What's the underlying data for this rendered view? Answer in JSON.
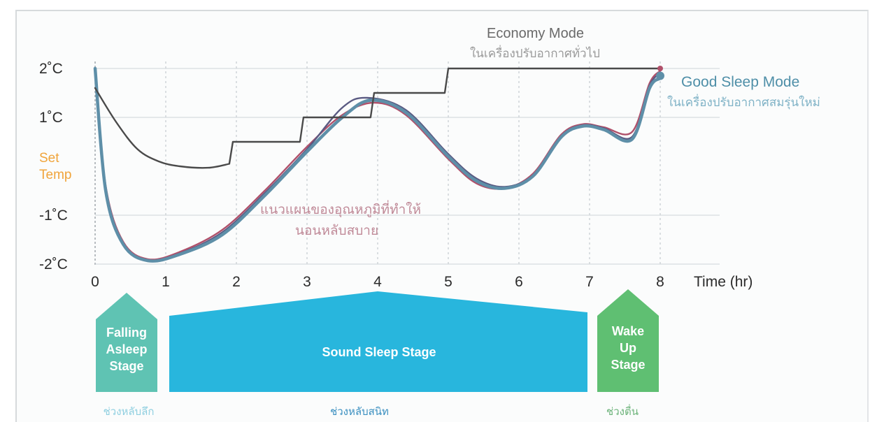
{
  "chart_data": {
    "type": "line",
    "xlabel": "Time (hr)",
    "x_ticks": [
      "0",
      "1",
      "2",
      "3",
      "4",
      "5",
      "6",
      "7",
      "8"
    ],
    "y_ticks": [
      "2˚C",
      "1˚C",
      "Set Temp",
      "-1˚C",
      "-2˚C"
    ],
    "set_temp_label": [
      "Set",
      "Temp"
    ],
    "xlim": [
      0,
      8.2
    ],
    "ylim": [
      -2,
      2
    ],
    "grid": true,
    "series": [
      {
        "name": "Economy Mode",
        "subtitle": "ในเครื่องปรับอากาศทั่วไป",
        "color": "#4a4a4a",
        "x": [
          0,
          0.3,
          0.6,
          0.9,
          1.2,
          1.6,
          1.9,
          1.95,
          2.9,
          2.95,
          3.9,
          3.95,
          4.95,
          5.0,
          8.0
        ],
        "y": [
          1.6,
          0.9,
          0.35,
          0.1,
          0.0,
          -0.03,
          0.05,
          0.5,
          0.5,
          1.0,
          1.0,
          1.5,
          1.5,
          2.0,
          2.0
        ]
      },
      {
        "name": "Good Sleep Mode",
        "subtitle": "ในเครื่องปรับอากาศสมรุ่นใหม่",
        "color": "#5e8fa8",
        "x": [
          0,
          0.15,
          0.4,
          0.75,
          1.2,
          1.8,
          2.4,
          3.0,
          3.5,
          3.9,
          4.4,
          5.0,
          5.4,
          5.8,
          6.2,
          6.6,
          6.9,
          7.2,
          7.6,
          7.85,
          8.0
        ],
        "y": [
          2.0,
          -0.5,
          -1.6,
          -1.93,
          -1.8,
          -1.4,
          -0.6,
          0.3,
          1.0,
          1.35,
          1.1,
          0.2,
          -0.3,
          -0.45,
          -0.2,
          0.6,
          0.82,
          0.75,
          0.55,
          1.6,
          1.8
        ]
      },
      {
        "name": "",
        "color": "#b0506a",
        "x": [
          0,
          0.15,
          0.4,
          0.75,
          1.2,
          1.8,
          2.4,
          3.0,
          3.5,
          3.95,
          4.4,
          5.0,
          5.4,
          5.8,
          6.2,
          6.6,
          6.9,
          7.2,
          7.6,
          7.85,
          8.0
        ],
        "y": [
          2.0,
          -0.4,
          -1.55,
          -1.9,
          -1.75,
          -1.3,
          -0.5,
          0.4,
          1.05,
          1.3,
          1.05,
          0.15,
          -0.35,
          -0.45,
          -0.15,
          0.65,
          0.86,
          0.8,
          0.7,
          1.7,
          1.95
        ]
      },
      {
        "name": "",
        "color": "#5a5a82",
        "x": [
          0,
          0.15,
          0.4,
          0.75,
          1.2,
          1.8,
          2.4,
          3.0,
          3.5,
          3.85,
          4.4,
          5.0,
          5.4,
          5.8,
          6.2,
          6.6,
          6.9,
          7.2,
          7.6,
          7.85,
          8.0
        ],
        "y": [
          2.0,
          -0.45,
          -1.58,
          -1.92,
          -1.78,
          -1.35,
          -0.55,
          0.35,
          1.2,
          1.4,
          1.15,
          0.25,
          -0.25,
          -0.42,
          -0.18,
          0.62,
          0.84,
          0.78,
          0.6,
          1.65,
          1.9
        ]
      }
    ],
    "set_temp_value": 0.0,
    "annotation": [
      "แนวแผนของอุณหภูมิที่ทำให้",
      "นอนหลับสบาย"
    ]
  },
  "stages": [
    {
      "label": [
        "Falling",
        "Asleep",
        "Stage"
      ],
      "color": "#5fc3b3",
      "sub": "ช่วงหลับลึก",
      "sub_color": "#8fcfe0"
    },
    {
      "label": [
        "Sound Sleep Stage"
      ],
      "color": "#28b6dd",
      "sub": "ช่วงหลับสนิท",
      "sub_color": "#3a8fc0"
    },
    {
      "label": [
        "Wake",
        "Up",
        "Stage"
      ],
      "color": "#5fbf72",
      "sub": "ช่วงตื่น",
      "sub_color": "#6cb37a"
    }
  ]
}
